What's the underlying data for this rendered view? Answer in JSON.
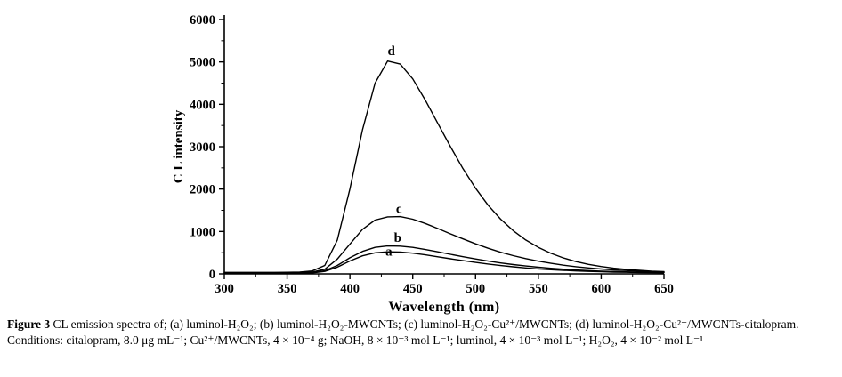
{
  "caption": {
    "label": "Figure 3",
    "text": " CL emission spectra of; (a) luminol-H₂O₂; (b) luminol-H₂O₂-MWCNTs; (c) luminol-H₂O₂-Cu²⁺/MWCNTs; (d) luminol-H₂O₂-Cu²⁺/MWCNTs-citalopram.",
    "conditions": "Conditions: citalopram, 8.0 μg mL⁻¹; Cu²⁺/MWCNTs, 4 × 10⁻⁴ g; NaOH, 8 × 10⁻³ mol L⁻¹; luminol, 4 × 10⁻³ mol L⁻¹; H₂O₂, 4 × 10⁻² mol L⁻¹"
  },
  "chart_data": {
    "type": "line",
    "title": "",
    "xlabel": "Wavelength (nm)",
    "ylabel": "C L intensity",
    "xlim": [
      300,
      650
    ],
    "ylim": [
      0,
      6000
    ],
    "x_ticks": [
      300,
      350,
      400,
      450,
      500,
      550,
      600,
      650
    ],
    "y_ticks": [
      0,
      1000,
      2000,
      3000,
      4000,
      5000,
      6000
    ],
    "x_minor_step": 25,
    "y_minor_step": 500,
    "grid": false,
    "legend": "curve letters placed above peaks",
    "line_color": "#000000",
    "x": [
      300,
      310,
      320,
      330,
      340,
      350,
      360,
      370,
      380,
      390,
      400,
      410,
      420,
      430,
      440,
      450,
      460,
      470,
      480,
      490,
      500,
      510,
      520,
      530,
      540,
      550,
      560,
      570,
      580,
      590,
      600,
      610,
      620,
      630,
      640,
      650
    ],
    "series": [
      {
        "name": "a",
        "description": "luminol-H₂O₂",
        "peak_x": 430,
        "peak_y": 520,
        "values": [
          12,
          12,
          12,
          12,
          12,
          13,
          15,
          24,
          58,
          160,
          305,
          425,
          498,
          520,
          515,
          488,
          448,
          403,
          357,
          312,
          270,
          232,
          197,
          167,
          141,
          118,
          99,
          83,
          70,
          59,
          50,
          43,
          37,
          32,
          28,
          25
        ],
        "label_at": [
          431,
          430
        ]
      },
      {
        "name": "b",
        "description": "luminol-H₂O₂-MWCNTs",
        "peak_x": 432,
        "peak_y": 660,
        "values": [
          18,
          18,
          18,
          18,
          18,
          20,
          22,
          32,
          75,
          200,
          380,
          530,
          625,
          658,
          655,
          625,
          575,
          520,
          462,
          405,
          352,
          303,
          259,
          220,
          186,
          157,
          132,
          111,
          93,
          78,
          66,
          56,
          48,
          42,
          37,
          33
        ],
        "label_at": [
          438,
          760
        ]
      },
      {
        "name": "c",
        "description": "luminol-H₂O₂-Cu²⁺/MWCNTs",
        "peak_x": 437,
        "peak_y": 1350,
        "values": [
          25,
          25,
          25,
          25,
          25,
          27,
          30,
          45,
          110,
          350,
          700,
          1050,
          1270,
          1345,
          1350,
          1290,
          1190,
          1070,
          945,
          825,
          710,
          605,
          510,
          430,
          360,
          300,
          250,
          205,
          170,
          140,
          115,
          95,
          80,
          65,
          55,
          45
        ],
        "label_at": [
          439,
          1440
        ]
      },
      {
        "name": "d",
        "description": "luminol-H₂O₂-Cu²⁺/MWCNTs-citalopram",
        "peak_x": 432,
        "peak_y": 5020,
        "values": [
          35,
          35,
          35,
          35,
          35,
          38,
          45,
          70,
          200,
          800,
          2000,
          3400,
          4500,
          5020,
          4950,
          4600,
          4100,
          3550,
          3000,
          2480,
          2020,
          1620,
          1290,
          1020,
          800,
          625,
          485,
          375,
          290,
          225,
          175,
          135,
          105,
          85,
          65,
          55
        ],
        "label_at": [
          433,
          5160
        ]
      }
    ]
  }
}
